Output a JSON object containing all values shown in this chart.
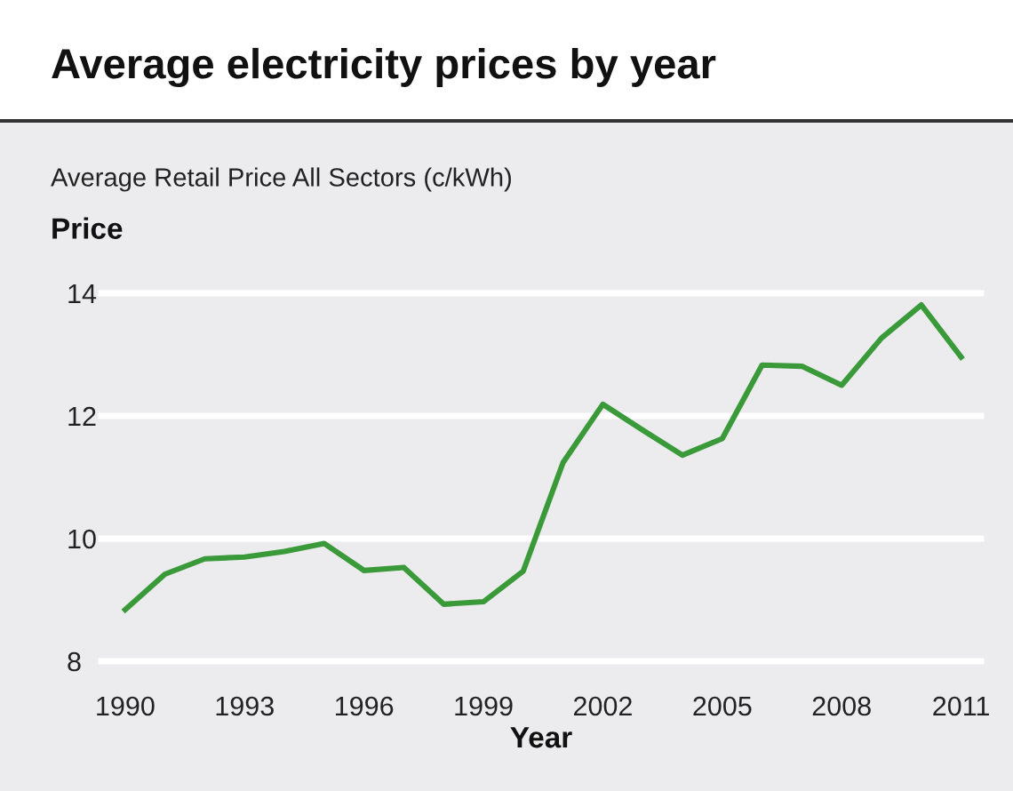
{
  "chart_data": {
    "type": "line",
    "title": "Average electricity prices by year",
    "subtitle": "Average Retail Price All Sectors (c/kWh)",
    "ylabel": "Price",
    "xlabel": "Year",
    "x": [
      1990,
      1991,
      1992,
      1993,
      1994,
      1995,
      1996,
      1997,
      1998,
      1999,
      2000,
      2001,
      2002,
      2003,
      2004,
      2005,
      2006,
      2007,
      2008,
      2009,
      2010,
      2011
    ],
    "series": [
      {
        "color": "#3a9a3a",
        "values": [
          8.84,
          9.42,
          9.67,
          9.7,
          9.79,
          9.92,
          9.48,
          9.53,
          8.93,
          8.97,
          9.47,
          11.24,
          12.19,
          11.77,
          11.36,
          11.63,
          12.83,
          12.81,
          12.5,
          13.27,
          13.81,
          12.96
        ]
      }
    ],
    "xlim": [
      1989.4,
      2011.5
    ],
    "xticks": [
      1990,
      1993,
      1996,
      1999,
      2002,
      2005,
      2008,
      2011
    ],
    "ylim": [
      8,
      14
    ],
    "yticks": [
      8,
      10,
      12,
      14
    ],
    "grid": "y",
    "legend": false,
    "marker": "none",
    "line_style": "solid"
  }
}
